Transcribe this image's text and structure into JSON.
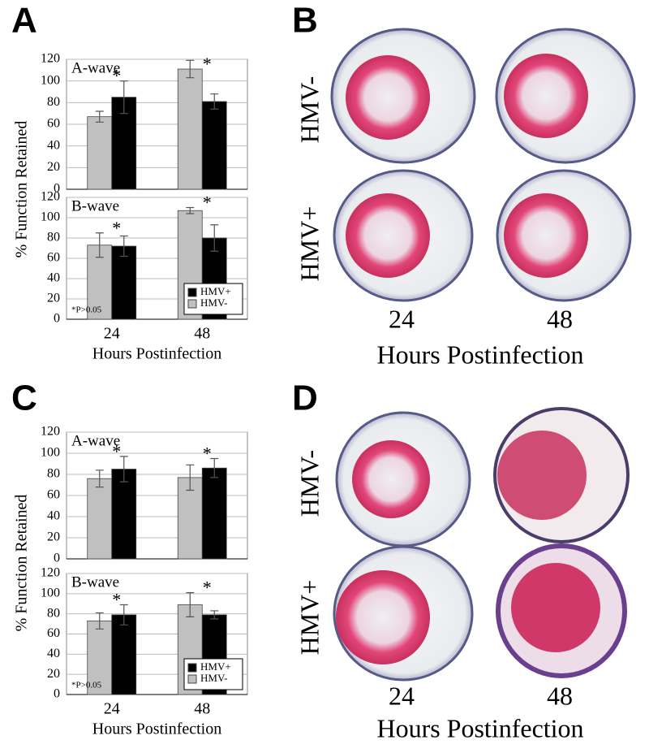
{
  "chart_data": [
    {
      "type": "bar",
      "title": "A-wave",
      "categories": [
        null,
        null
      ],
      "ylim": [
        0,
        120
      ],
      "yticks": [
        0,
        20,
        40,
        60,
        80,
        100,
        120
      ],
      "grid": true,
      "series": [
        {
          "color": "#c0c0c0",
          "values": [
            67,
            111
          ],
          "errors": [
            5,
            8
          ]
        },
        {
          "color": "#000000",
          "values": [
            85,
            81
          ],
          "errors": [
            15,
            7
          ]
        }
      ],
      "markers": [
        "*",
        "*"
      ]
    },
    {
      "type": "bar",
      "title": "B-wave",
      "categories": [
        "24",
        "48"
      ],
      "xlabel": "Hours Postinfection",
      "ylabel": "% Function Retained",
      "ylim": [
        0,
        120
      ],
      "yticks": [
        0,
        20,
        40,
        60,
        80,
        100,
        120
      ],
      "grid": true,
      "series": [
        {
          "name": "HMV-",
          "color": "#c0c0c0",
          "values": [
            73,
            107
          ],
          "errors": [
            12,
            3
          ]
        },
        {
          "name": "HMV+",
          "color": "#000000",
          "values": [
            72,
            80
          ],
          "errors": [
            10,
            13
          ]
        }
      ],
      "markers": [
        "*",
        "*"
      ],
      "note": "*P>0.05",
      "legend": "lower right"
    },
    {
      "type": "bar",
      "title": "A-wave",
      "categories": [
        null,
        null
      ],
      "ylim": [
        0,
        120
      ],
      "yticks": [
        0,
        20,
        40,
        60,
        80,
        100,
        120
      ],
      "grid": true,
      "series": [
        {
          "color": "#c0c0c0",
          "values": [
            76,
            77
          ],
          "errors": [
            8,
            12
          ]
        },
        {
          "color": "#000000",
          "values": [
            85,
            86
          ],
          "errors": [
            12,
            9
          ]
        }
      ],
      "markers": [
        "*",
        "*"
      ]
    },
    {
      "type": "bar",
      "title": "B-wave",
      "categories": [
        "24",
        "48"
      ],
      "xlabel": "Hours Postinfection",
      "ylabel": "% Function Retained",
      "ylim": [
        0,
        120
      ],
      "yticks": [
        0,
        20,
        40,
        60,
        80,
        100,
        120
      ],
      "grid": true,
      "series": [
        {
          "name": "HMV-",
          "color": "#c0c0c0",
          "values": [
            73,
            89
          ],
          "errors": [
            8,
            12
          ]
        },
        {
          "name": "HMV+",
          "color": "#000000",
          "values": [
            79,
            79
          ],
          "errors": [
            10,
            4
          ]
        }
      ],
      "markers": [
        "*",
        "*"
      ],
      "note": "*P>0.05",
      "legend": "lower right"
    }
  ],
  "panels": [
    {
      "letter": "A"
    },
    {
      "letter": "B",
      "rows": [
        "HMV-",
        "HMV+"
      ],
      "columns": [
        "24",
        "48"
      ],
      "xlabel": "Hours Postinfection"
    },
    {
      "letter": "C"
    },
    {
      "letter": "D",
      "rows": [
        "HMV-",
        "HMV+"
      ],
      "columns": [
        "24",
        "48"
      ],
      "xlabel": "Hours Postinfection"
    }
  ]
}
